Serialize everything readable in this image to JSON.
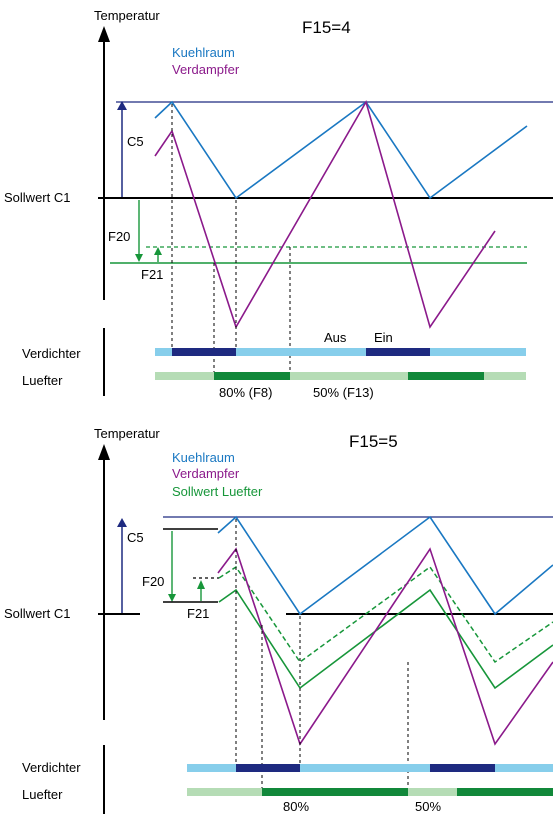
{
  "colors": {
    "kuehlraum": "#1a78c2",
    "verdampfer": "#8b1a8b",
    "sollwert_luefter": "#17963a",
    "bar_light_blue": "#87ceeb",
    "bar_dark_blue": "#1e2a80",
    "bar_light_green": "#b5dcb5",
    "bar_dark_green": "#11883a",
    "axis": "#000000"
  },
  "diagram1": {
    "title": "F15=4",
    "axis_label": "Temperatur",
    "legend": {
      "kuehlraum": "Kuehlraum",
      "verdampfer": "Verdampfer"
    },
    "setpoint_label": "Sollwert C1",
    "c5": "C5",
    "f20": "F20",
    "f21": "F21",
    "row_compressor": "Verdichter",
    "row_fan": "Luefter",
    "label_aus": "Aus",
    "label_ein": "Ein",
    "label_80": "80% (F8)",
    "label_50": "50% (F13)"
  },
  "diagram2": {
    "title": "F15=5",
    "axis_label": "Temperatur",
    "legend": {
      "kuehlraum": "Kuehlraum",
      "verdampfer": "Verdampfer",
      "sollwert_luefter": "Sollwert Luefter"
    },
    "setpoint_label": "Sollwert C1",
    "c5": "C5",
    "f20": "F20",
    "f21": "F21",
    "row_compressor": "Verdichter",
    "row_fan": "Luefter",
    "label_80": "80%",
    "label_50": "50%"
  }
}
